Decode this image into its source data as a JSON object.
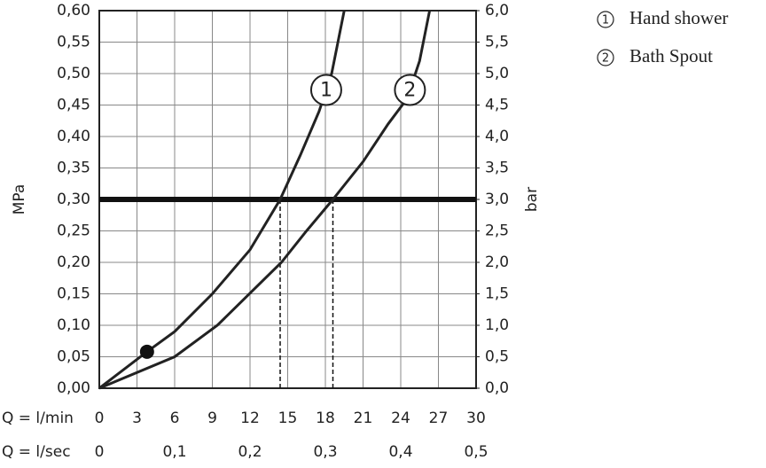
{
  "chart_data": {
    "type": "line",
    "x_row_label": "Q = l/min",
    "x2_row_label": "Q = l/sec",
    "ylabel": "MPa",
    "y2label": "bar",
    "xlim": [
      0,
      30
    ],
    "xticks": [
      0,
      3,
      6,
      9,
      12,
      15,
      18,
      21,
      24,
      27,
      30
    ],
    "x2lim": [
      0,
      0.5
    ],
    "x2ticks": [
      0,
      {
        "value": 0.1,
        "label": "0,1"
      },
      {
        "value": 0.2,
        "label": "0,2"
      },
      {
        "value": 0.3,
        "label": "0,3"
      },
      {
        "value": 0.4,
        "label": "0,4"
      },
      {
        "value": 0.5,
        "label": "0,5"
      }
    ],
    "ylim": [
      0,
      0.6
    ],
    "yticks": [
      {
        "value": 0,
        "label": "0,00"
      },
      {
        "value": 0.05,
        "label": "0,05"
      },
      {
        "value": 0.1,
        "label": "0,10"
      },
      {
        "value": 0.15,
        "label": "0,15"
      },
      {
        "value": 0.2,
        "label": "0,20"
      },
      {
        "value": 0.25,
        "label": "0,25"
      },
      {
        "value": 0.3,
        "label": "0,30"
      },
      {
        "value": 0.35,
        "label": "0,35"
      },
      {
        "value": 0.4,
        "label": "0,40"
      },
      {
        "value": 0.45,
        "label": "0,45"
      },
      {
        "value": 0.5,
        "label": "0,50"
      },
      {
        "value": 0.55,
        "label": "0,55"
      },
      {
        "value": 0.6,
        "label": "0,60"
      }
    ],
    "y2lim": [
      0,
      6
    ],
    "y2ticks": [
      {
        "value": 0,
        "label": "0,0"
      },
      {
        "value": 0.5,
        "label": "0,5"
      },
      {
        "value": 1,
        "label": "1,0"
      },
      {
        "value": 1.5,
        "label": "1,5"
      },
      {
        "value": 2,
        "label": "2,0"
      },
      {
        "value": 2.5,
        "label": "2,5"
      },
      {
        "value": 3,
        "label": "3,0"
      },
      {
        "value": 3.5,
        "label": "3,5"
      },
      {
        "value": 4,
        "label": "4,0"
      },
      {
        "value": 4.5,
        "label": "4,5"
      },
      {
        "value": 5,
        "label": "5,0"
      },
      {
        "value": 5.5,
        "label": "5,5"
      },
      {
        "value": 6,
        "label": "6,0"
      }
    ],
    "grid": true,
    "color": "#222222",
    "hline": 0.3,
    "reference_x": [
      14.4,
      18.6
    ],
    "point": [
      3.8,
      0.058
    ],
    "series": [
      {
        "name": "Hand shower",
        "label": "1",
        "color": "#222222",
        "x": [
          0,
          3.8,
          6,
          9,
          12,
          14.4,
          16,
          17.5,
          18.5,
          19,
          19.5
        ],
        "values": [
          0,
          0.058,
          0.09,
          0.15,
          0.22,
          0.3,
          0.37,
          0.44,
          0.5,
          0.55,
          0.6
        ]
      },
      {
        "name": "Bath Spout",
        "label": "2",
        "color": "#222222",
        "x": [
          0,
          6,
          9.4,
          14.5,
          16.5,
          18.6,
          21,
          23,
          24.5,
          25.5,
          26.3
        ],
        "values": [
          0,
          0.05,
          0.1,
          0.2,
          0.25,
          0.3,
          0.36,
          0.42,
          0.46,
          0.52,
          0.6
        ]
      }
    ]
  }
}
